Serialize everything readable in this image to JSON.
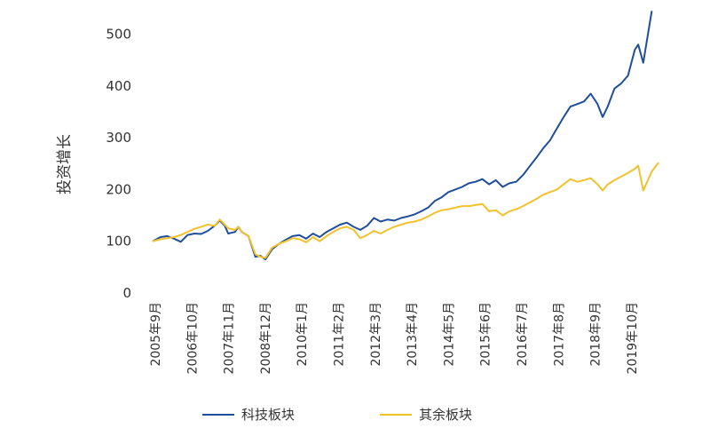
{
  "chart_data": {
    "type": "line",
    "title": "",
    "xlabel": "",
    "ylabel": "投资增长",
    "ylim": [
      0,
      550
    ],
    "yticks": [
      0,
      100,
      200,
      300,
      400,
      500
    ],
    "x_tick_labels": [
      "2005年9月",
      "2006年10月",
      "2007年11月",
      "2008年12月",
      "2010年1月",
      "2011年2月",
      "2012年3月",
      "2013年4月",
      "2014年5月",
      "2015年6月",
      "2016年7月",
      "2017年8月",
      "2018年9月",
      "2019年10月"
    ],
    "x_range": [
      2005.67,
      2020.6
    ],
    "grid": false,
    "legend_position": "bottom",
    "colors": {
      "tech": "#1f4e9c",
      "other": "#f2c12e"
    },
    "series": [
      {
        "name": "科技板块",
        "color": "#1f4e9c",
        "points": [
          [
            2005.67,
            100
          ],
          [
            2005.9,
            108
          ],
          [
            2006.1,
            110
          ],
          [
            2006.3,
            105
          ],
          [
            2006.5,
            99
          ],
          [
            2006.7,
            112
          ],
          [
            2006.9,
            115
          ],
          [
            2007.1,
            114
          ],
          [
            2007.3,
            120
          ],
          [
            2007.5,
            130
          ],
          [
            2007.65,
            140
          ],
          [
            2007.8,
            130
          ],
          [
            2007.9,
            115
          ],
          [
            2008.1,
            118
          ],
          [
            2008.2,
            128
          ],
          [
            2008.3,
            118
          ],
          [
            2008.5,
            110
          ],
          [
            2008.7,
            70
          ],
          [
            2008.85,
            72
          ],
          [
            2009.0,
            65
          ],
          [
            2009.2,
            85
          ],
          [
            2009.4,
            95
          ],
          [
            2009.6,
            103
          ],
          [
            2009.8,
            110
          ],
          [
            2010.0,
            112
          ],
          [
            2010.2,
            105
          ],
          [
            2010.4,
            115
          ],
          [
            2010.6,
            108
          ],
          [
            2010.8,
            118
          ],
          [
            2011.0,
            125
          ],
          [
            2011.2,
            132
          ],
          [
            2011.4,
            136
          ],
          [
            2011.6,
            128
          ],
          [
            2011.8,
            122
          ],
          [
            2012.0,
            130
          ],
          [
            2012.2,
            145
          ],
          [
            2012.4,
            138
          ],
          [
            2012.6,
            142
          ],
          [
            2012.8,
            140
          ],
          [
            2013.0,
            145
          ],
          [
            2013.2,
            148
          ],
          [
            2013.4,
            152
          ],
          [
            2013.6,
            158
          ],
          [
            2013.8,
            165
          ],
          [
            2014.0,
            178
          ],
          [
            2014.2,
            185
          ],
          [
            2014.4,
            195
          ],
          [
            2014.6,
            200
          ],
          [
            2014.8,
            205
          ],
          [
            2015.0,
            212
          ],
          [
            2015.2,
            215
          ],
          [
            2015.4,
            220
          ],
          [
            2015.6,
            210
          ],
          [
            2015.8,
            218
          ],
          [
            2016.0,
            205
          ],
          [
            2016.2,
            212
          ],
          [
            2016.4,
            215
          ],
          [
            2016.6,
            228
          ],
          [
            2016.8,
            245
          ],
          [
            2017.0,
            262
          ],
          [
            2017.2,
            280
          ],
          [
            2017.4,
            295
          ],
          [
            2017.6,
            318
          ],
          [
            2017.8,
            340
          ],
          [
            2018.0,
            360
          ],
          [
            2018.2,
            365
          ],
          [
            2018.4,
            370
          ],
          [
            2018.6,
            385
          ],
          [
            2018.8,
            365
          ],
          [
            2018.95,
            340
          ],
          [
            2019.1,
            360
          ],
          [
            2019.3,
            395
          ],
          [
            2019.5,
            405
          ],
          [
            2019.7,
            420
          ],
          [
            2019.9,
            470
          ],
          [
            2020.0,
            480
          ],
          [
            2020.15,
            445
          ],
          [
            2020.4,
            545
          ]
        ]
      },
      {
        "name": "其余板块",
        "color": "#f2c12e",
        "points": [
          [
            2005.67,
            100
          ],
          [
            2005.9,
            104
          ],
          [
            2006.1,
            106
          ],
          [
            2006.3,
            108
          ],
          [
            2006.5,
            112
          ],
          [
            2006.7,
            118
          ],
          [
            2006.9,
            124
          ],
          [
            2007.1,
            128
          ],
          [
            2007.3,
            132
          ],
          [
            2007.5,
            130
          ],
          [
            2007.65,
            142
          ],
          [
            2007.8,
            132
          ],
          [
            2007.9,
            125
          ],
          [
            2008.1,
            122
          ],
          [
            2008.2,
            128
          ],
          [
            2008.3,
            118
          ],
          [
            2008.5,
            110
          ],
          [
            2008.7,
            75
          ],
          [
            2008.85,
            70
          ],
          [
            2009.0,
            68
          ],
          [
            2009.2,
            88
          ],
          [
            2009.4,
            95
          ],
          [
            2009.6,
            100
          ],
          [
            2009.8,
            106
          ],
          [
            2010.0,
            104
          ],
          [
            2010.2,
            98
          ],
          [
            2010.4,
            108
          ],
          [
            2010.6,
            100
          ],
          [
            2010.8,
            110
          ],
          [
            2011.0,
            118
          ],
          [
            2011.2,
            125
          ],
          [
            2011.4,
            128
          ],
          [
            2011.6,
            122
          ],
          [
            2011.8,
            106
          ],
          [
            2012.0,
            112
          ],
          [
            2012.2,
            120
          ],
          [
            2012.4,
            115
          ],
          [
            2012.6,
            122
          ],
          [
            2012.8,
            128
          ],
          [
            2013.0,
            132
          ],
          [
            2013.2,
            136
          ],
          [
            2013.4,
            138
          ],
          [
            2013.6,
            142
          ],
          [
            2013.8,
            148
          ],
          [
            2014.0,
            155
          ],
          [
            2014.2,
            160
          ],
          [
            2014.4,
            162
          ],
          [
            2014.6,
            165
          ],
          [
            2014.8,
            168
          ],
          [
            2015.0,
            168
          ],
          [
            2015.2,
            170
          ],
          [
            2015.4,
            172
          ],
          [
            2015.6,
            158
          ],
          [
            2015.8,
            160
          ],
          [
            2016.0,
            150
          ],
          [
            2016.2,
            158
          ],
          [
            2016.4,
            162
          ],
          [
            2016.6,
            168
          ],
          [
            2016.8,
            175
          ],
          [
            2017.0,
            182
          ],
          [
            2017.2,
            190
          ],
          [
            2017.4,
            195
          ],
          [
            2017.6,
            200
          ],
          [
            2017.8,
            210
          ],
          [
            2018.0,
            220
          ],
          [
            2018.2,
            215
          ],
          [
            2018.4,
            218
          ],
          [
            2018.6,
            222
          ],
          [
            2018.8,
            210
          ],
          [
            2018.95,
            198
          ],
          [
            2019.1,
            210
          ],
          [
            2019.3,
            218
          ],
          [
            2019.5,
            225
          ],
          [
            2019.7,
            232
          ],
          [
            2019.9,
            240
          ],
          [
            2020.0,
            246
          ],
          [
            2020.15,
            198
          ],
          [
            2020.4,
            235
          ],
          [
            2020.6,
            252
          ]
        ]
      }
    ]
  }
}
